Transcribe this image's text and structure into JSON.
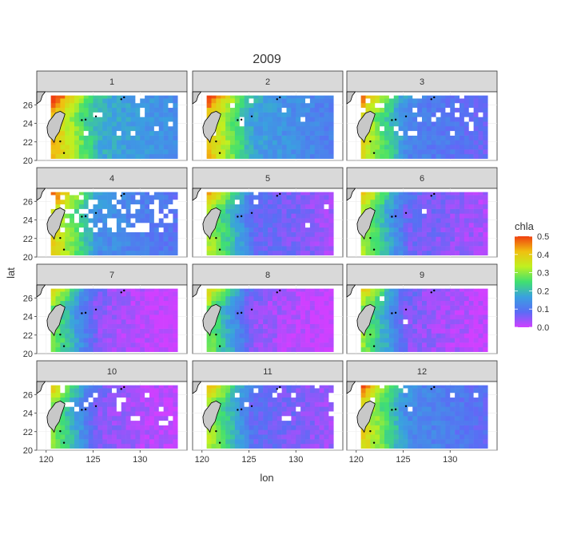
{
  "chart_data": {
    "type": "heatmap",
    "title": "2009",
    "xlabel": "lon",
    "ylabel": "lat",
    "xlim": [
      119,
      135
    ],
    "ylim": [
      20,
      27.4
    ],
    "x_ticks": [
      120,
      125,
      130
    ],
    "y_ticks": [
      20,
      22,
      24,
      26
    ],
    "facet_labels": [
      "1",
      "2",
      "3",
      "4",
      "5",
      "6",
      "7",
      "8",
      "9",
      "10",
      "11",
      "12"
    ],
    "legend": {
      "title": "chla",
      "position": "right",
      "ticks": [
        "0.5",
        "0.4",
        "0.3",
        "0.2",
        "0.1",
        "0.0"
      ],
      "range": [
        0,
        0.5
      ],
      "colors": [
        "#d040ff",
        "#5a6cf5",
        "#3aa0e0",
        "#40e070",
        "#c0f020",
        "#f0c010",
        "#f04010"
      ]
    },
    "grid": true,
    "panel_strip_color": "#d9d9d9",
    "land_color": "#c8c8c8",
    "missing_color": "#ffffff",
    "approx_mean_offshore_chla_by_month": [
      0.18,
      0.16,
      0.12,
      0.14,
      0.08,
      0.07,
      0.04,
      0.04,
      0.05,
      0.05,
      0.08,
      0.13
    ]
  }
}
